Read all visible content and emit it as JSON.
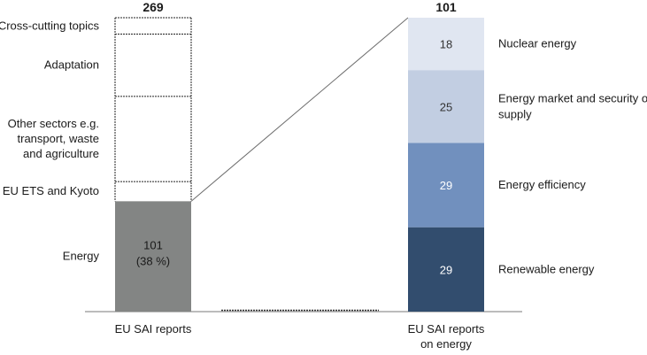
{
  "chart_data": {
    "type": "bar",
    "left_bar": {
      "label": "EU SAI reports",
      "total": 269,
      "total_label": "269",
      "segments": [
        {
          "name": "Energy",
          "value": 101,
          "label_line1": "101",
          "label_line2": "(38 %)",
          "color": "#838584"
        },
        {
          "name": "EU ETS and Kyoto",
          "value": 18
        },
        {
          "name": "Other sectors e.g. transport, waste and agriculture",
          "value": 78,
          "label_lines": [
            "Other sectors e.g.",
            "transport, waste",
            "and agriculture"
          ]
        },
        {
          "name": "Adaptation",
          "value": 57
        },
        {
          "name": "Cross-cutting topics",
          "value": 15
        }
      ]
    },
    "right_bar": {
      "label_lines": [
        "EU SAI reports",
        "on energy"
      ],
      "total": 101,
      "total_label": "101",
      "segments": [
        {
          "name": "Renewable energy",
          "value": 29,
          "label": "29",
          "color": "#324d6e",
          "text_color": "#ffffff"
        },
        {
          "name": "Energy efficiency",
          "value": 29,
          "label": "29",
          "color": "#7190be",
          "text_color": "#ffffff"
        },
        {
          "name": "Energy market and security of supply",
          "value": 25,
          "label": "25",
          "color": "#c2cee2",
          "text_color": "#333333",
          "label_lines": [
            "Energy market and security of",
            "supply"
          ]
        },
        {
          "name": "Nuclear energy",
          "value": 18,
          "label": "18",
          "color": "#e0e6f1",
          "text_color": "#333333"
        }
      ]
    }
  }
}
